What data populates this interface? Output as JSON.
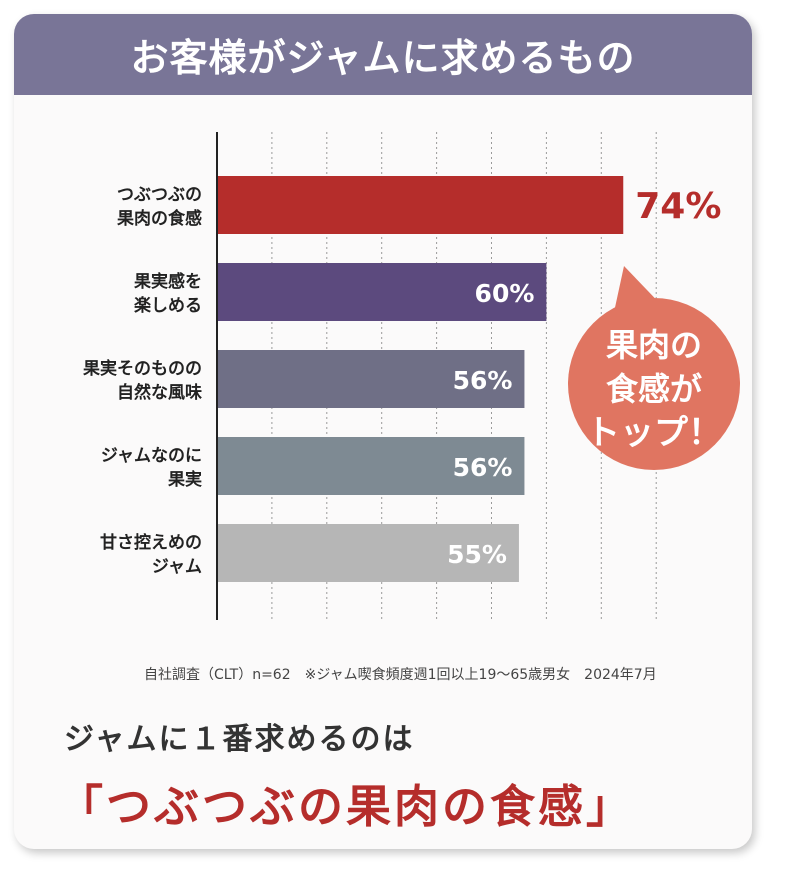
{
  "title": "お客様がジャムに求めるもの",
  "chart_data": {
    "type": "bar",
    "orientation": "horizontal",
    "categories": [
      [
        "つぶつぶの",
        "果肉の食感"
      ],
      [
        "果実感を",
        "楽しめる"
      ],
      [
        "果実そのものの",
        "自然な風味"
      ],
      [
        "ジャムなのに",
        "果実"
      ],
      [
        "甘さ控えめの",
        "ジャム"
      ]
    ],
    "values": [
      74,
      60,
      56,
      56,
      55
    ],
    "value_labels": [
      "74%",
      "60%",
      "56%",
      "56%",
      "55%"
    ],
    "bar_colors": [
      "#b52d2b",
      "#5c4a7e",
      "#6f6f86",
      "#7e8a93",
      "#b6b6b6"
    ],
    "xlim": [
      0,
      80
    ],
    "grid": "vertical dotted",
    "legend": "none"
  },
  "callout": {
    "lines": [
      "果肉の",
      "食感が",
      "トップ！"
    ],
    "color": "#e07561"
  },
  "source_note": "自社調査（CLT）n=62　※ジャム喫食頻度週1回以上19〜65歳男女　2024年7月",
  "lead_text": "ジャムに１番求めるのは",
  "highlight_text": "「つぶつぶの果肉の食感」"
}
